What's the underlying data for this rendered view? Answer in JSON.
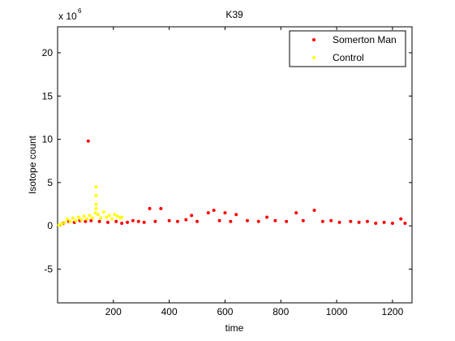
{
  "chart_data": {
    "type": "scatter",
    "title": "K39",
    "x_label": "time",
    "y_label": "Isotope count",
    "y_multiplier": {
      "base": "x 10",
      "exponent": "6"
    },
    "xlim": [
      0,
      1270
    ],
    "xticks": [
      200,
      400,
      600,
      800,
      1000,
      1200
    ],
    "ylim": [
      -8.9,
      23
    ],
    "yticks": [
      -5,
      0,
      5,
      10,
      15,
      20
    ],
    "legend_position": "upper right",
    "series": [
      {
        "name": "Somerton Man",
        "color": "#ff0000",
        "x": [
          20,
          40,
          60,
          80,
          100,
          110,
          120,
          150,
          180,
          210,
          230,
          250,
          270,
          290,
          310,
          330,
          350,
          370,
          400,
          430,
          460,
          480,
          500,
          540,
          560,
          580,
          600,
          620,
          640,
          680,
          720,
          750,
          780,
          820,
          855,
          880,
          920,
          950,
          980,
          1010,
          1050,
          1080,
          1110,
          1140,
          1170,
          1200,
          1230,
          1245
        ],
        "values": [
          0.3,
          0.5,
          0.4,
          0.6,
          0.5,
          9.8,
          0.6,
          0.5,
          0.4,
          0.5,
          0.3,
          0.4,
          0.6,
          0.5,
          0.4,
          2.0,
          0.5,
          2.0,
          0.6,
          0.5,
          0.7,
          1.2,
          0.5,
          1.5,
          1.8,
          0.6,
          1.5,
          0.5,
          1.3,
          0.6,
          0.5,
          1.0,
          0.6,
          0.5,
          1.5,
          0.6,
          1.8,
          0.5,
          0.6,
          0.4,
          0.5,
          0.4,
          0.5,
          0.3,
          0.4,
          0.3,
          0.8,
          0.3
        ]
      },
      {
        "name": "Control",
        "color": "#ffff00",
        "x": [
          5,
          15,
          25,
          35,
          45,
          55,
          65,
          75,
          85,
          95,
          105,
          115,
          125,
          135,
          138,
          138,
          138,
          138,
          145,
          155,
          165,
          175,
          185,
          195,
          205,
          215,
          225,
          230
        ],
        "values": [
          0.1,
          0.2,
          0.4,
          0.8,
          0.5,
          0.9,
          0.6,
          1.0,
          0.7,
          1.1,
          0.8,
          1.2,
          0.9,
          1.5,
          4.5,
          3.5,
          2.5,
          2.0,
          1.3,
          0.9,
          1.6,
          1.0,
          1.2,
          0.8,
          1.3,
          1.1,
          0.9,
          1.0
        ]
      }
    ]
  }
}
